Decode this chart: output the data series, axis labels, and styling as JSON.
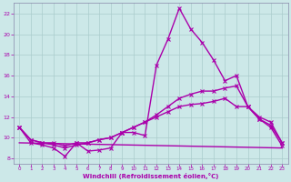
{
  "xlabel": "Windchill (Refroidissement éolien,°C)",
  "bg_color": "#cce8e8",
  "line_color": "#aa00aa",
  "grid_color": "#aacccc",
  "spine_color": "#8888aa",
  "xlim": [
    -0.5,
    23.5
  ],
  "ylim": [
    7.5,
    23
  ],
  "yticks": [
    8,
    10,
    12,
    14,
    16,
    18,
    20,
    22
  ],
  "xticks": [
    0,
    1,
    2,
    3,
    4,
    5,
    6,
    7,
    8,
    9,
    10,
    11,
    12,
    13,
    14,
    15,
    16,
    17,
    18,
    19,
    20,
    21,
    22,
    23
  ],
  "series": [
    {
      "x": [
        0,
        1,
        2,
        3,
        4,
        5,
        6,
        7,
        8,
        9,
        10,
        11,
        12,
        13,
        14,
        15,
        16,
        17,
        18,
        19,
        20,
        21,
        22,
        23
      ],
      "y": [
        11,
        9.5,
        9.3,
        9.0,
        8.2,
        9.5,
        8.7,
        8.8,
        9.0,
        10.5,
        10.5,
        10.2,
        17.0,
        19.5,
        22.5,
        20.5,
        19.2,
        17.5,
        15.5,
        16.0,
        13.0,
        11.8,
        11.0,
        9.2
      ],
      "marker": "x",
      "markersize": 3,
      "linewidth": 1.0
    },
    {
      "x": [
        0,
        1,
        2,
        3,
        4,
        5,
        6,
        7,
        8,
        9,
        10,
        11,
        12,
        13,
        14,
        15,
        16,
        17,
        18,
        19,
        20,
        21,
        22,
        23
      ],
      "y": [
        11,
        9.8,
        9.5,
        9.3,
        9.0,
        9.3,
        9.5,
        9.8,
        10.0,
        10.5,
        11.0,
        11.5,
        12.2,
        13.0,
        13.8,
        14.2,
        14.5,
        14.5,
        14.8,
        15.0,
        13.0,
        12.0,
        11.5,
        9.5
      ],
      "marker": "x",
      "markersize": 3,
      "linewidth": 1.0
    },
    {
      "x": [
        0,
        1,
        2,
        3,
        4,
        5,
        6,
        7,
        8,
        9,
        10,
        11,
        12,
        13,
        14,
        15,
        16,
        17,
        18,
        19,
        20,
        21,
        22,
        23
      ],
      "y": [
        11,
        9.8,
        9.5,
        9.5,
        9.2,
        9.5,
        9.5,
        9.8,
        10.0,
        10.5,
        11.0,
        11.5,
        12.0,
        12.5,
        13.0,
        13.2,
        13.3,
        13.5,
        13.8,
        13.0,
        13.0,
        11.8,
        11.2,
        9.5
      ],
      "marker": "x",
      "markersize": 3,
      "linewidth": 1.0
    },
    {
      "x": [
        0,
        23
      ],
      "y": [
        9.5,
        9.0
      ],
      "marker": null,
      "markersize": 0,
      "linewidth": 1.0
    }
  ]
}
